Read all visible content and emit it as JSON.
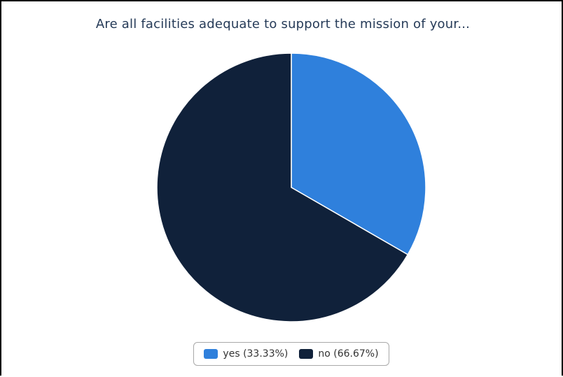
{
  "chart_data": {
    "type": "pie",
    "title": "Are all facilities adequate to support the mission of your...",
    "slices": [
      {
        "label": "yes (33.33%)",
        "value": 33.33,
        "color": "#2f80dc"
      },
      {
        "label": "no (66.67%)",
        "value": 66.67,
        "color": "#10213a"
      }
    ],
    "legend_position": "bottom-center"
  }
}
